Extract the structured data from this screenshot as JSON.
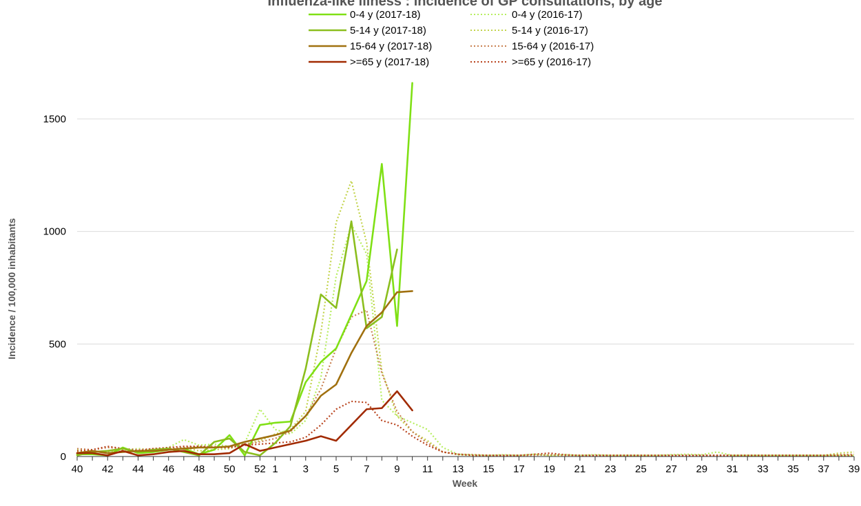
{
  "chart_data": {
    "type": "line",
    "title": "Influenza-like illness : incidence of GP consultations, by age",
    "xlabel": "Week",
    "ylabel": "Incidence / 100,000 inhabitants",
    "ylim": [
      0,
      1700
    ],
    "y_ticks": [
      0,
      500,
      1000,
      1500
    ],
    "x_tick_labels": [
      "40",
      "42",
      "44",
      "46",
      "48",
      "50",
      "52",
      "1",
      "3",
      "5",
      "7",
      "9",
      "11",
      "13",
      "15",
      "17",
      "19",
      "21",
      "23",
      "25",
      "27",
      "29",
      "31",
      "33",
      "35",
      "37",
      "39"
    ],
    "weeks": [
      "40",
      "41",
      "42",
      "43",
      "44",
      "45",
      "46",
      "47",
      "48",
      "49",
      "50",
      "51",
      "52",
      "1",
      "2",
      "3",
      "4",
      "5",
      "6",
      "7",
      "8",
      "9",
      "10",
      "11",
      "12",
      "13",
      "14",
      "15",
      "16",
      "17",
      "18",
      "19",
      "20",
      "21",
      "22",
      "23",
      "24",
      "25",
      "26",
      "27",
      "28",
      "29",
      "30",
      "31",
      "32",
      "33",
      "34",
      "35",
      "36",
      "37",
      "38",
      "39"
    ],
    "grid": true,
    "legend_position": "top-center",
    "series": [
      {
        "name": "0-4 y (2017-18)",
        "color": "#7fe014",
        "style": "solid",
        "values": [
          10,
          10,
          5,
          40,
          15,
          20,
          30,
          35,
          10,
          30,
          95,
          5,
          140,
          150,
          155,
          330,
          420,
          480,
          630,
          780,
          1300,
          580,
          1660
        ]
      },
      {
        "name": "5-14 y (2017-18)",
        "color": "#8bbe1e",
        "style": "solid",
        "values": [
          5,
          20,
          25,
          35,
          20,
          30,
          35,
          20,
          5,
          65,
          80,
          20,
          5,
          60,
          135,
          390,
          720,
          660,
          1045,
          570,
          620,
          920
        ]
      },
      {
        "name": "15-64 y (2017-18)",
        "color": "#a0700f",
        "style": "solid",
        "values": [
          15,
          25,
          15,
          20,
          25,
          25,
          30,
          35,
          40,
          40,
          45,
          65,
          80,
          95,
          115,
          180,
          270,
          320,
          460,
          580,
          640,
          730,
          735
        ]
      },
      {
        "name": ">=65 y (2017-18)",
        "color": "#a12a00",
        "style": "solid",
        "values": [
          15,
          15,
          5,
          25,
          5,
          10,
          20,
          25,
          10,
          10,
          15,
          55,
          25,
          40,
          55,
          70,
          90,
          70,
          140,
          210,
          215,
          290,
          205
        ]
      },
      {
        "name": "0-4 y (2016-17)",
        "color": "#b6ee5e",
        "style": "dotted",
        "values": [
          30,
          20,
          25,
          30,
          35,
          30,
          40,
          75,
          50,
          55,
          45,
          60,
          210,
          120,
          100,
          160,
          350,
          800,
          1030,
          900,
          250,
          180,
          150,
          120,
          40,
          10,
          8,
          5,
          8,
          5,
          10,
          5,
          8,
          5,
          8,
          5,
          5,
          5,
          5,
          8,
          10,
          8,
          20,
          5,
          5,
          5,
          5,
          5,
          5,
          5,
          5,
          5
        ]
      },
      {
        "name": "5-14 y (2016-17)",
        "color": "#c2d34a",
        "style": "dotted",
        "values": [
          20,
          25,
          20,
          30,
          25,
          30,
          35,
          40,
          25,
          30,
          35,
          55,
          70,
          100,
          120,
          200,
          550,
          1040,
          1225,
          950,
          380,
          180,
          110,
          70,
          20,
          8,
          5,
          5,
          5,
          5,
          8,
          5,
          5,
          5,
          5,
          5,
          5,
          5,
          5,
          5,
          5,
          5,
          5,
          5,
          5,
          5,
          5,
          5,
          5,
          5,
          15,
          20
        ]
      },
      {
        "name": "15-64 y (2016-17)",
        "color": "#c88050",
        "style": "dotted",
        "values": [
          35,
          30,
          40,
          35,
          30,
          35,
          35,
          40,
          45,
          45,
          40,
          55,
          65,
          80,
          110,
          180,
          300,
          480,
          620,
          650,
          370,
          200,
          110,
          60,
          20,
          10,
          8,
          5,
          5,
          5,
          5,
          8,
          5,
          5,
          5,
          5,
          5,
          5,
          5,
          5,
          5,
          5,
          5,
          5,
          5,
          5,
          5,
          5,
          5,
          5,
          8,
          10
        ]
      },
      {
        "name": ">=65 y (2016-17)",
        "color": "#b8421c",
        "style": "dotted",
        "values": [
          25,
          30,
          45,
          35,
          25,
          35,
          40,
          45,
          45,
          40,
          40,
          50,
          55,
          60,
          65,
          85,
          140,
          210,
          245,
          240,
          160,
          140,
          90,
          50,
          20,
          10,
          5,
          5,
          5,
          5,
          10,
          15,
          8,
          5,
          5,
          5,
          5,
          5,
          5,
          5,
          5,
          5,
          5,
          5,
          5,
          5,
          5,
          5,
          5,
          5,
          5,
          5
        ]
      }
    ]
  }
}
